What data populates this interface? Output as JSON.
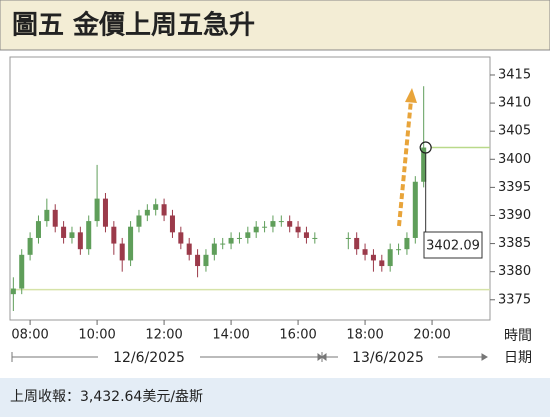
{
  "chart_data": {
    "type": "candlestick",
    "title": "圖五  金價上周五急升",
    "footer": "上周收報：3,432.64美元/盎斯",
    "x_label": "時間",
    "date_axis_label": "日期",
    "dates": [
      "12/6/2025",
      "13/6/2025"
    ],
    "x": [
      7.5,
      7.75,
      8,
      8.25,
      8.5,
      8.75,
      9,
      9.25,
      9.5,
      9.75,
      10,
      10.25,
      10.5,
      10.75,
      11,
      11.25,
      11.5,
      11.75,
      12,
      12.25,
      12.5,
      12.75,
      13,
      13.25,
      13.5,
      13.75,
      14,
      14.25,
      14.5,
      14.75,
      15,
      15.25,
      15.5,
      15.75,
      16,
      16.25,
      16.5,
      17.5,
      17.75,
      18,
      18.25,
      18.5,
      18.75,
      19,
      19.25,
      19.5,
      19.75
    ],
    "open": [
      3376,
      3377,
      3383,
      3386,
      3389,
      3391,
      3388,
      3386,
      3387,
      3384,
      3389,
      3393,
      3388,
      3385,
      3382,
      3388,
      3390,
      3391,
      3392,
      3390,
      3387,
      3385,
      3383,
      3381,
      3383,
      3385,
      3385,
      3386,
      3386,
      3387,
      3388,
      3388,
      3389,
      3389,
      3388,
      3387,
      3386,
      3386,
      3386,
      3384,
      3383,
      3382,
      3381,
      3384,
      3384,
      3386,
      3396
    ],
    "high": [
      3379,
      3384,
      3387,
      3390,
      3393,
      3392,
      3389,
      3388,
      3388,
      3390,
      3399,
      3394,
      3389,
      3386,
      3389,
      3391,
      3392,
      3393,
      3393,
      3391,
      3388,
      3386,
      3384,
      3384,
      3386,
      3386,
      3387,
      3387,
      3388,
      3389,
      3389,
      3390,
      3390,
      3390,
      3389,
      3388,
      3387,
      3387,
      3387,
      3385,
      3384,
      3383,
      3385,
      3385,
      3387,
      3397,
      3413
    ],
    "low": [
      3373,
      3376,
      3382,
      3385,
      3388,
      3387,
      3385,
      3385,
      3383,
      3383,
      3388,
      3387,
      3383,
      3380,
      3381,
      3387,
      3389,
      3390,
      3389,
      3386,
      3384,
      3382,
      3379,
      3380,
      3382,
      3384,
      3384,
      3385,
      3385,
      3386,
      3387,
      3387,
      3388,
      3387,
      3386,
      3385,
      3385,
      3384,
      3383,
      3382,
      3380,
      3380,
      3380,
      3383,
      3383,
      3385,
      3395
    ],
    "close": [
      3377,
      3383,
      3386,
      3389,
      3391,
      3388,
      3386,
      3387,
      3384,
      3389,
      3393,
      3388,
      3385,
      3382,
      3388,
      3390,
      3391,
      3392,
      3390,
      3387,
      3385,
      3383,
      3381,
      3383,
      3385,
      3385,
      3386,
      3386,
      3387,
      3388,
      3388,
      3389,
      3389,
      3388,
      3387,
      3386,
      3386,
      3386,
      3384,
      3383,
      3382,
      3381,
      3384,
      3384,
      3386,
      3396,
      3402.09
    ],
    "up_color": "#5f9e5a",
    "down_color": "#9b3a4a",
    "hlines": [
      3376.8
    ],
    "xlim": [
      7.4,
      21.73
    ],
    "xticks": [
      {
        "value": 8,
        "label": "08:00"
      },
      {
        "value": 10,
        "label": "10:00"
      },
      {
        "value": 12,
        "label": "12:00"
      },
      {
        "value": 14,
        "label": "14:00"
      },
      {
        "value": 16,
        "label": "16:00"
      },
      {
        "value": 18,
        "label": "18:00"
      },
      {
        "value": 20,
        "label": "20:00"
      }
    ],
    "ylim": [
      3371.4,
      3418.2
    ],
    "yticks": [
      3375,
      3380,
      3385,
      3390,
      3395,
      3400,
      3405,
      3410,
      3415
    ],
    "grid": false
  }
}
